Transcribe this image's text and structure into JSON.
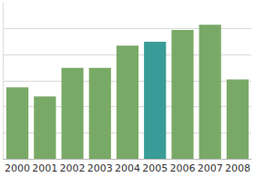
{
  "chart_data": {
    "type": "bar",
    "categories": [
      "2000",
      "2001",
      "2002",
      "2003",
      "2004",
      "2005",
      "2006",
      "2007",
      "2008"
    ],
    "values": [
      2.75,
      2.4,
      3.5,
      3.5,
      4.35,
      4.5,
      4.95,
      5.15,
      3.05
    ],
    "colors": [
      "#79a966",
      "#79a966",
      "#79a966",
      "#79a966",
      "#79a966",
      "#3a9c98",
      "#79a966",
      "#79a966",
      "#79a966"
    ],
    "ylim": [
      0,
      6
    ],
    "yticks": [
      0,
      1,
      2,
      3,
      4,
      5,
      6
    ],
    "grid": true,
    "tick_labels": "x"
  }
}
